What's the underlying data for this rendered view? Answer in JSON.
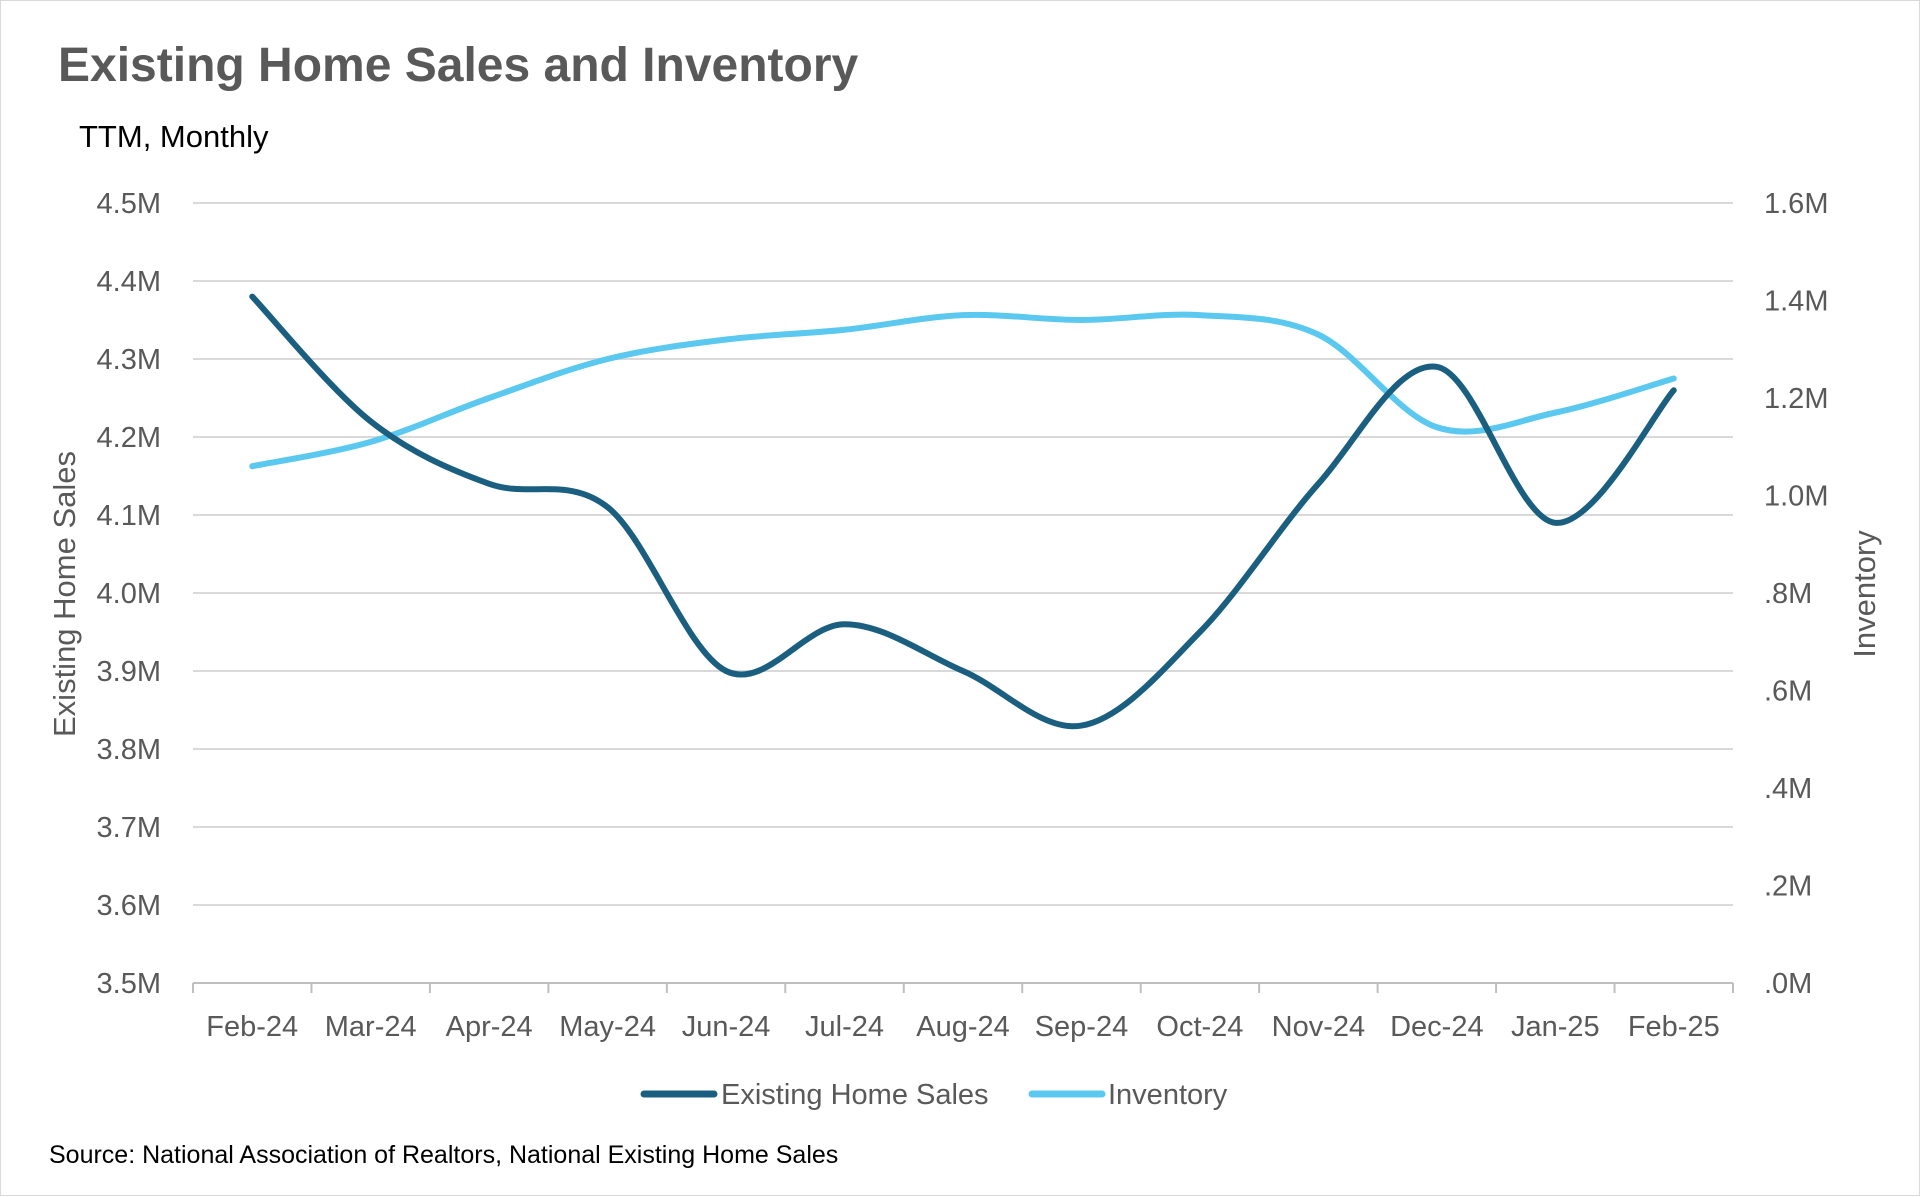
{
  "chart_data": {
    "type": "line",
    "title": "Existing Home Sales and Inventory",
    "subtitle": "TTM, Monthly",
    "source": "Source: National Association of Realtors, National Existing Home Sales",
    "categories": [
      "Feb-24",
      "Mar-24",
      "Apr-24",
      "May-24",
      "Jun-24",
      "Jul-24",
      "Aug-24",
      "Sep-24",
      "Oct-24",
      "Nov-24",
      "Dec-24",
      "Jan-25",
      "Feb-25"
    ],
    "series": [
      {
        "name": "Existing Home Sales",
        "axis": "left",
        "color": "#1b5f80",
        "values": [
          4380000,
          4220000,
          4140000,
          4110000,
          3900000,
          3960000,
          3900000,
          3830000,
          3950000,
          4140000,
          4290000,
          4090000,
          4260000
        ]
      },
      {
        "name": "Inventory",
        "axis": "right",
        "color": "#5bc8ef",
        "values": [
          1060000,
          1110000,
          1200000,
          1280000,
          1320000,
          1340000,
          1370000,
          1360000,
          1370000,
          1330000,
          1140000,
          1170000,
          1240000
        ]
      }
    ],
    "ylabel": "Existing Home Sales",
    "ylabel_right": "Inventory",
    "ylim": [
      3500000,
      4500000
    ],
    "ylim_right": [
      0,
      1600000
    ],
    "yticks": [
      "4.5M",
      "4.4M",
      "4.3M",
      "4.2M",
      "4.1M",
      "4.0M",
      "3.9M",
      "3.8M",
      "3.7M",
      "3.6M",
      "3.5M"
    ],
    "yticks_right": [
      "1.6M",
      "1.4M",
      "1.2M",
      "1.0M",
      ".8M",
      ".6M",
      ".4M",
      ".2M",
      ".0M"
    ],
    "grid": true,
    "legend_position": "bottom"
  }
}
